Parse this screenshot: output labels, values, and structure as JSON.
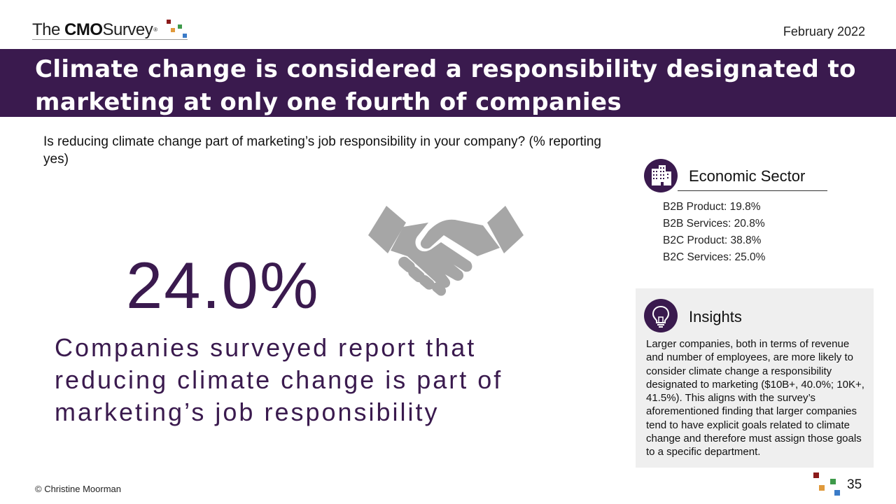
{
  "header": {
    "logo_the": "The",
    "logo_cmo": "CMO",
    "logo_survey": "Survey",
    "logo_reg": "®",
    "date": "February 2022"
  },
  "title": "Climate change is considered a responsibility designated to marketing at only one fourth of companies",
  "question": "Is reducing climate change part of marketing’s job responsibility in your company? (% reporting yes)",
  "main": {
    "percent": "24.0%",
    "statement": "Companies surveyed report that reducing climate change is part of marketing’s job responsibility"
  },
  "sector": {
    "title": "Economic Sector",
    "icon": "buildings-icon",
    "items": [
      "B2B Product: 19.8%",
      "B2B Services: 20.8%",
      "B2C Product: 38.8%",
      "B2C Services: 25.0%"
    ]
  },
  "insights": {
    "title": "Insights",
    "icon": "lightbulb-icon",
    "text": "Larger companies, both in terms of revenue and number of employees, are more likely to consider climate change a responsibility designated to marketing ($10B+, 40.0%; 10K+, 41.5%). This aligns with the survey’s aforementioned finding that larger companies tend to have explicit goals related to climate change and therefore must assign those goals to a specific department."
  },
  "footer": {
    "copyright": "© Christine Moorman",
    "page_number": "35"
  },
  "colors": {
    "brand_purple": "#3a1a4e",
    "dot_red": "#8b1a1a",
    "dot_orange": "#e09a3c",
    "dot_green": "#3e9a4a",
    "dot_blue": "#3a7bc8",
    "icon_gray": "#a6a6a6"
  }
}
